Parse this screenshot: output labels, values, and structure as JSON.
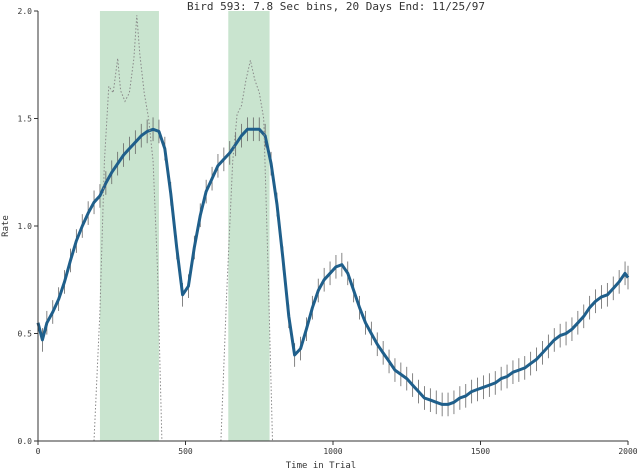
{
  "chart_data": {
    "type": "line",
    "title": "Bird 593: 7.8 Sec bins, 20 Days End: 11/25/97",
    "xlabel": "Time in Trial",
    "ylabel": "Rate",
    "xlim": [
      0,
      2000
    ],
    "ylim": [
      0,
      2
    ],
    "x_ticks": [
      "0",
      "500",
      "1000",
      "1500",
      "2000"
    ],
    "y_ticks": [
      "0.0",
      "0.5",
      "1.0",
      "1.5",
      "2.0"
    ],
    "grid": false,
    "shaded_regions": [
      {
        "x_start": 210,
        "x_end": 410,
        "color": "#c9e4cf"
      },
      {
        "x_start": 645,
        "x_end": 785,
        "color": "#c9e4cf"
      }
    ],
    "series": [
      {
        "style": "line-with-errorbars",
        "color": "#1f5f8b",
        "x": [
          0,
          15,
          30,
          50,
          70,
          90,
          110,
          130,
          150,
          170,
          190,
          210,
          230,
          250,
          270,
          290,
          310,
          330,
          350,
          370,
          390,
          410,
          430,
          450,
          470,
          490,
          510,
          530,
          550,
          570,
          590,
          610,
          630,
          650,
          670,
          690,
          710,
          730,
          750,
          770,
          790,
          810,
          830,
          850,
          870,
          890,
          910,
          930,
          950,
          970,
          990,
          1010,
          1030,
          1050,
          1070,
          1090,
          1110,
          1130,
          1150,
          1170,
          1190,
          1210,
          1230,
          1250,
          1270,
          1290,
          1310,
          1330,
          1350,
          1370,
          1390,
          1410,
          1430,
          1450,
          1470,
          1490,
          1510,
          1530,
          1550,
          1570,
          1590,
          1610,
          1630,
          1650,
          1670,
          1690,
          1710,
          1730,
          1750,
          1770,
          1790,
          1810,
          1830,
          1850,
          1870,
          1890,
          1910,
          1930,
          1950,
          1970,
          1990,
          2000
        ],
        "y": [
          0.55,
          0.47,
          0.55,
          0.6,
          0.66,
          0.74,
          0.84,
          0.93,
          1.0,
          1.06,
          1.11,
          1.14,
          1.2,
          1.25,
          1.29,
          1.33,
          1.36,
          1.39,
          1.42,
          1.44,
          1.45,
          1.44,
          1.36,
          1.15,
          0.9,
          0.68,
          0.72,
          0.9,
          1.05,
          1.16,
          1.22,
          1.28,
          1.31,
          1.34,
          1.38,
          1.42,
          1.45,
          1.45,
          1.45,
          1.42,
          1.29,
          1.1,
          0.85,
          0.58,
          0.4,
          0.43,
          0.52,
          0.62,
          0.7,
          0.75,
          0.78,
          0.81,
          0.82,
          0.78,
          0.7,
          0.62,
          0.55,
          0.5,
          0.45,
          0.41,
          0.37,
          0.33,
          0.31,
          0.29,
          0.26,
          0.23,
          0.2,
          0.19,
          0.18,
          0.17,
          0.17,
          0.18,
          0.2,
          0.21,
          0.23,
          0.24,
          0.25,
          0.26,
          0.27,
          0.29,
          0.3,
          0.32,
          0.33,
          0.34,
          0.36,
          0.38,
          0.41,
          0.44,
          0.47,
          0.49,
          0.5,
          0.52,
          0.55,
          0.58,
          0.62,
          0.65,
          0.67,
          0.68,
          0.71,
          0.74,
          0.78,
          0.76
        ],
        "err": 0.055
      },
      {
        "style": "dotted",
        "color": "#888888",
        "x": [
          190,
          210,
          225,
          240,
          255,
          270,
          280,
          295,
          310,
          325,
          335,
          345,
          360,
          375,
          390,
          405,
          420
        ],
        "y": [
          0.0,
          0.6,
          1.3,
          1.65,
          1.62,
          1.78,
          1.63,
          1.58,
          1.62,
          1.78,
          1.98,
          1.8,
          1.62,
          1.5,
          1.3,
          0.8,
          0.0
        ],
        "label": ""
      },
      {
        "style": "dotted",
        "color": "#888888",
        "x": [
          620,
          640,
          660,
          675,
          690,
          705,
          720,
          735,
          750,
          765,
          780,
          795
        ],
        "y": [
          0.0,
          0.7,
          1.3,
          1.52,
          1.56,
          1.68,
          1.77,
          1.68,
          1.62,
          1.5,
          0.8,
          0.0
        ]
      }
    ]
  }
}
